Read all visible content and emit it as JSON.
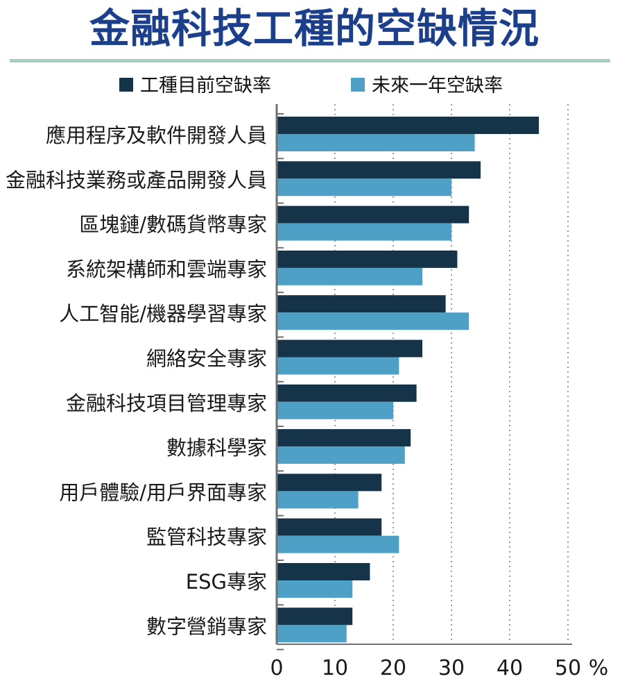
{
  "chart_data": {
    "type": "bar",
    "orientation": "horizontal",
    "title": "金融科技工種的空缺情況",
    "categories": [
      "應用程序及軟件開發人員",
      "金融科技業務或產品開發人員",
      "區塊鏈/數碼貨幣專家",
      "系統架構師和雲端專家",
      "人工智能/機器學習專家",
      "網絡安全專家",
      "金融科技項目管理專家",
      "數據科學家",
      "用戶體驗/用戶界面專家",
      "監管科技專家",
      "ESG專家",
      "數字營銷專家"
    ],
    "series": [
      {
        "name": "工種目前空缺率",
        "color": "#15344a",
        "values": [
          45,
          35,
          33,
          31,
          29,
          25,
          24,
          23,
          18,
          18,
          16,
          13
        ]
      },
      {
        "name": "未來一年空缺率",
        "color": "#4fa0c7",
        "values": [
          34,
          30,
          30,
          25,
          33,
          21,
          20,
          22,
          14,
          21,
          13,
          12
        ]
      }
    ],
    "xlim": [
      0,
      50
    ],
    "xticks": [
      "0",
      "10",
      "20",
      "30",
      "40",
      "50"
    ],
    "xunit": "%",
    "grid": "vertical dotted",
    "legend_position": "top",
    "colors": {
      "title": "#1c3f8c",
      "rule": "#a9cfc2",
      "axis": "#707070"
    }
  }
}
